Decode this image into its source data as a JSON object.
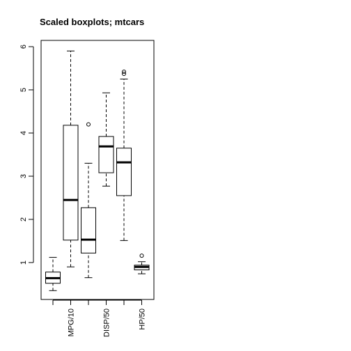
{
  "chart_data": {
    "type": "boxplot",
    "title": "Scaled boxplots; mtcars",
    "xlabel": "",
    "ylabel": "",
    "ylim": [
      0,
      6
    ],
    "y_ticks": [
      1,
      2,
      3,
      4,
      5,
      6
    ],
    "x_tick_labels": [
      "",
      "MPG/10",
      "",
      "DISP/50",
      "",
      "HP/50"
    ],
    "grid": false,
    "legend": "none",
    "boxes": [
      {
        "label": "",
        "min": 0.35,
        "q1": 0.52,
        "median": 0.64,
        "q3": 0.78,
        "max": 1.12,
        "outliers": []
      },
      {
        "label": "MPG/10",
        "min": 0.9,
        "q1": 1.52,
        "median": 2.45,
        "q3": 4.18,
        "max": 5.9,
        "outliers": []
      },
      {
        "label": "",
        "min": 0.65,
        "q1": 1.22,
        "median": 1.53,
        "q3": 2.27,
        "max": 3.3,
        "outliers": [
          4.2
        ]
      },
      {
        "label": "DISP/50",
        "min": 2.77,
        "q1": 3.08,
        "median": 3.69,
        "q3": 3.92,
        "max": 4.93,
        "outliers": []
      },
      {
        "label": "",
        "min": 1.51,
        "q1": 2.55,
        "median": 3.32,
        "q3": 3.65,
        "max": 5.25,
        "outliers": [
          5.37,
          5.42
        ]
      },
      {
        "label": "HP/50",
        "min": 0.74,
        "q1": 0.83,
        "median": 0.9,
        "q3": 0.94,
        "max": 1.02,
        "outliers": [
          1.16
        ]
      }
    ]
  }
}
